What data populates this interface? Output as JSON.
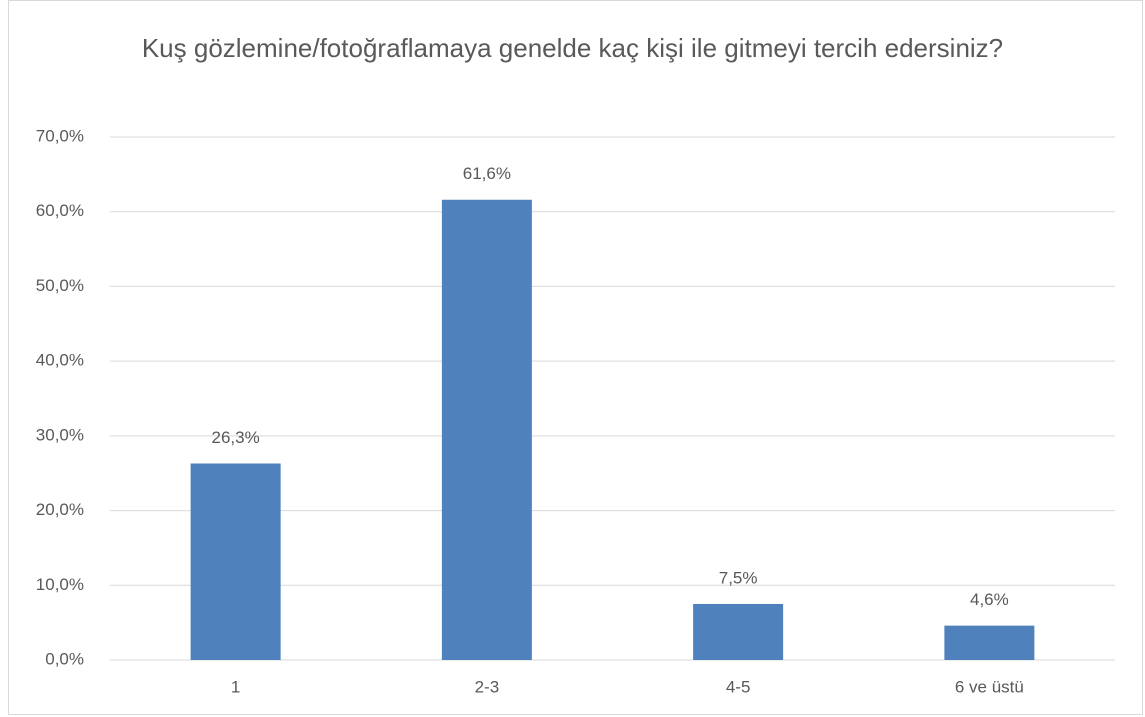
{
  "chart_data": {
    "type": "bar",
    "title": "Kuş gözlemine/fotoğraflamaya genelde kaç kişi ile gitmeyi tercih edersiniz?",
    "categories": [
      "1",
      "2-3",
      "4-5",
      "6 ve üstü"
    ],
    "values": [
      26.3,
      61.6,
      7.5,
      4.6
    ],
    "value_labels": [
      "26,3%",
      "61,6%",
      "7,5%",
      "4,6%"
    ],
    "color": "#4f81bd",
    "ylim": [
      0,
      70
    ],
    "yticks": [
      {
        "value": 0,
        "label": "0,0%"
      },
      {
        "value": 10,
        "label": "10,0%"
      },
      {
        "value": 20,
        "label": "20,0%"
      },
      {
        "value": 30,
        "label": "30,0%"
      },
      {
        "value": 40,
        "label": "40,0%"
      },
      {
        "value": 50,
        "label": "50,0%"
      },
      {
        "value": 60,
        "label": "60,0%"
      },
      {
        "value": 70,
        "label": "70,0%"
      }
    ],
    "grid": true
  }
}
